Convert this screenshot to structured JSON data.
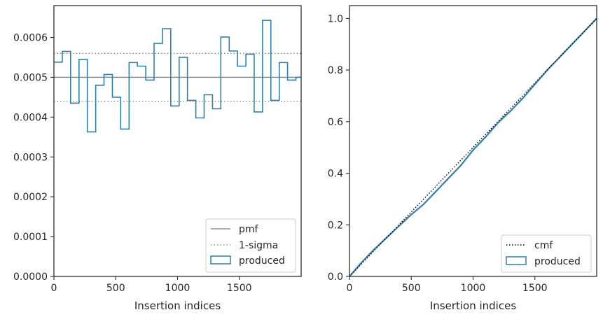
{
  "chart_data": [
    {
      "type": "step",
      "xlabel": "Insertion indices",
      "ylabel": "",
      "xlim": [
        0,
        2000
      ],
      "ylim": [
        0,
        0.00068
      ],
      "x_ticks": [
        0,
        500,
        1000,
        1500
      ],
      "x_tick_labels": [
        "0",
        "500",
        "1000",
        "1500"
      ],
      "y_ticks": [
        0,
        0.0001,
        0.0002,
        0.0003,
        0.0004,
        0.0005,
        0.0006
      ],
      "y_tick_labels": [
        "0.0000",
        "0.0001",
        "0.0002",
        "0.0003",
        "0.0004",
        "0.0005",
        "0.0006"
      ],
      "legend": {
        "placement": "lower right",
        "entries": [
          "pmf",
          "1-sigma",
          "produced"
        ]
      },
      "pmf": 0.0005,
      "sigma_band": [
        0.00044,
        0.00056
      ],
      "histogram": {
        "name": "produced",
        "bin_edges": [
          0,
          68,
          135,
          203,
          270,
          338,
          405,
          473,
          540,
          608,
          675,
          743,
          810,
          878,
          945,
          1013,
          1080,
          1148,
          1215,
          1283,
          1350,
          1418,
          1485,
          1553,
          1620,
          1688,
          1755,
          1823,
          1890,
          1958,
          2000
        ],
        "values": [
          0.000538,
          0.000565,
          0.000435,
          0.000545,
          0.000363,
          0.00048,
          0.000507,
          0.00045,
          0.00037,
          0.000537,
          0.000528,
          0.000493,
          0.000585,
          0.000622,
          0.000428,
          0.00055,
          0.000442,
          0.000398,
          0.000456,
          0.000421,
          0.000601,
          0.000566,
          0.000528,
          0.000558,
          0.000413,
          0.000643,
          0.000442,
          0.000537,
          0.000493,
          0.0005
        ]
      },
      "colors": {
        "pmf": "#7f7f7f",
        "sigma": "#7f7f7f",
        "produced": "#2e7fb0",
        "spine": "#262626"
      }
    },
    {
      "type": "line",
      "xlabel": "Insertion indices",
      "ylabel": "",
      "xlim": [
        0,
        2000
      ],
      "ylim": [
        0,
        1.05
      ],
      "x_ticks": [
        0,
        500,
        1000,
        1500
      ],
      "x_tick_labels": [
        "0",
        "500",
        "1000",
        "1500"
      ],
      "y_ticks": [
        0,
        0.2,
        0.4,
        0.6,
        0.8,
        1.0
      ],
      "y_tick_labels": [
        "0.0",
        "0.2",
        "0.4",
        "0.6",
        "0.8",
        "1.0"
      ],
      "legend": {
        "placement": "lower right",
        "entries": [
          "cmf",
          "produced"
        ]
      },
      "cmf": {
        "name": "cmf",
        "x": [
          0,
          2000
        ],
        "y": [
          0,
          1.0
        ]
      },
      "produced": {
        "name": "produced",
        "x": [
          0,
          100,
          200,
          300,
          400,
          500,
          600,
          700,
          800,
          900,
          1000,
          1100,
          1200,
          1300,
          1400,
          1500,
          1600,
          1700,
          1800,
          1900,
          2000
        ],
        "y": [
          0,
          0.055,
          0.105,
          0.15,
          0.195,
          0.24,
          0.28,
          0.33,
          0.38,
          0.43,
          0.49,
          0.54,
          0.595,
          0.64,
          0.69,
          0.745,
          0.8,
          0.85,
          0.9,
          0.95,
          1.0
        ]
      },
      "colors": {
        "cmf": "#000000",
        "produced": "#2e7fb0",
        "spine": "#262626"
      }
    }
  ]
}
